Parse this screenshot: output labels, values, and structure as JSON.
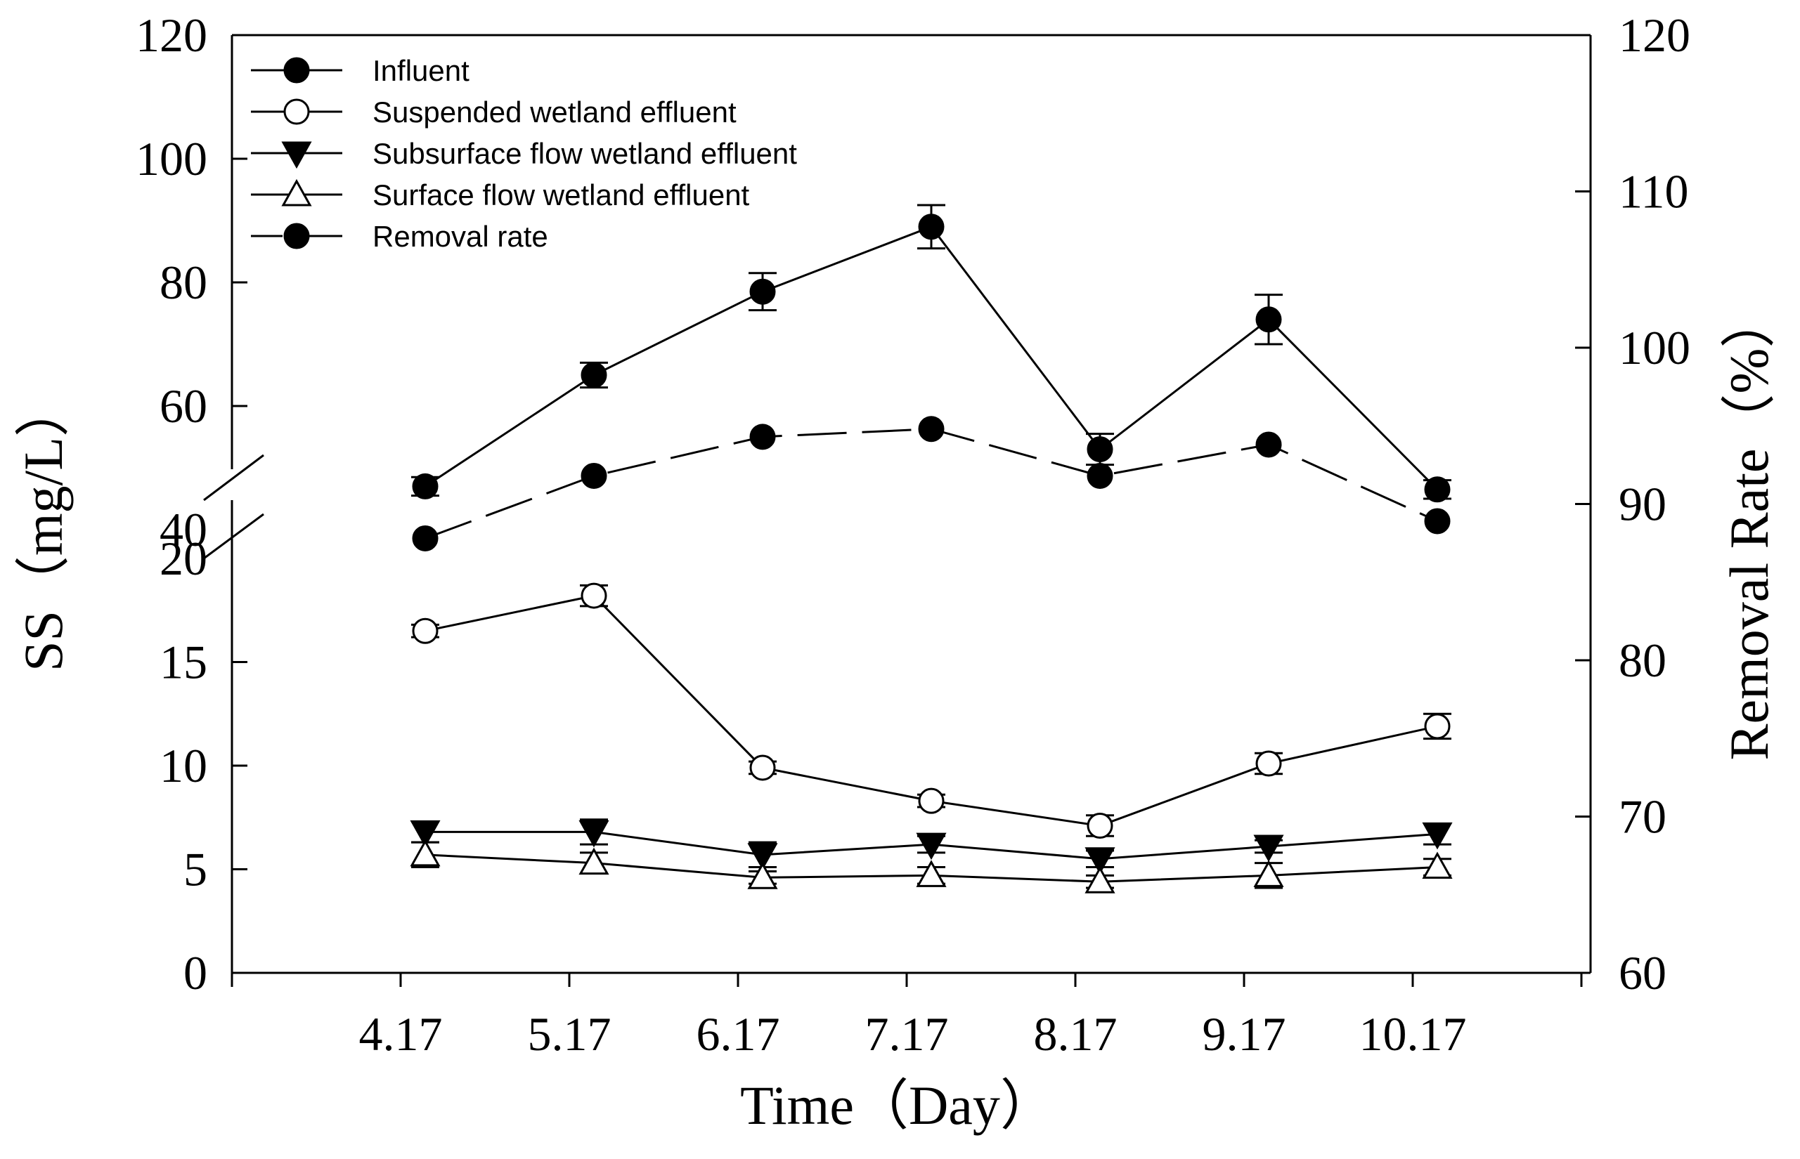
{
  "chart_data": {
    "type": "line",
    "x_categories": [
      "4.17",
      "5.17",
      "6.17",
      "7.17",
      "8.17",
      "9.17",
      "10.17"
    ],
    "xlabel": "Time（Day）",
    "ylabel": "SS（mg/L）",
    "y2label": "Removal Rate（%）",
    "y_axis": {
      "broken": true,
      "lower_range": [
        0,
        20
      ],
      "lower_ticks": [
        0,
        5,
        10,
        15,
        20
      ],
      "upper_range": [
        40,
        120
      ],
      "upper_ticks": [
        40,
        60,
        80,
        100,
        120
      ]
    },
    "y2_axis": {
      "range": [
        60,
        120
      ],
      "ticks": [
        60,
        70,
        80,
        90,
        100,
        110,
        120
      ]
    },
    "legend_position": "top-left",
    "series": [
      {
        "name": "Influent",
        "axis": "left",
        "marker": "filled-circle",
        "line": "solid",
        "values": [
          47,
          65,
          78.5,
          89,
          53,
          74,
          46.5
        ],
        "errors": [
          1.5,
          2,
          3,
          3.5,
          2.5,
          4,
          1.5
        ]
      },
      {
        "name": "Suspended wetland  effluent",
        "axis": "left",
        "marker": "open-circle",
        "line": "solid",
        "values": [
          16.5,
          18.2,
          9.9,
          8.3,
          7.1,
          10.1,
          11.9
        ],
        "errors": [
          0.3,
          0.5,
          0.3,
          0.3,
          0.5,
          0.5,
          0.6
        ]
      },
      {
        "name": "Subsurface flow wetland effluent",
        "axis": "left",
        "marker": "filled-triangle-down",
        "line": "solid",
        "values": [
          6.8,
          6.8,
          5.7,
          6.2,
          5.5,
          6.1,
          6.7
        ],
        "errors": [
          0.5,
          0.6,
          0.6,
          0.4,
          0.4,
          0.3,
          0.5
        ]
      },
      {
        "name": "Surface flow wetland  effluent",
        "axis": "left",
        "marker": "open-triangle-up",
        "line": "solid",
        "values": [
          5.7,
          5.3,
          4.6,
          4.7,
          4.4,
          4.7,
          5.1
        ],
        "errors": [
          0.6,
          0.5,
          0.3,
          0.4,
          0.3,
          0.6,
          0.4
        ]
      },
      {
        "name": "Removal rate",
        "axis": "right",
        "marker": "filled-circle",
        "line": "dashed",
        "values": [
          87.8,
          91.8,
          94.3,
          94.8,
          91.8,
          93.8,
          88.9
        ],
        "errors": [
          0,
          0,
          0,
          0,
          0,
          0,
          0
        ]
      }
    ]
  }
}
